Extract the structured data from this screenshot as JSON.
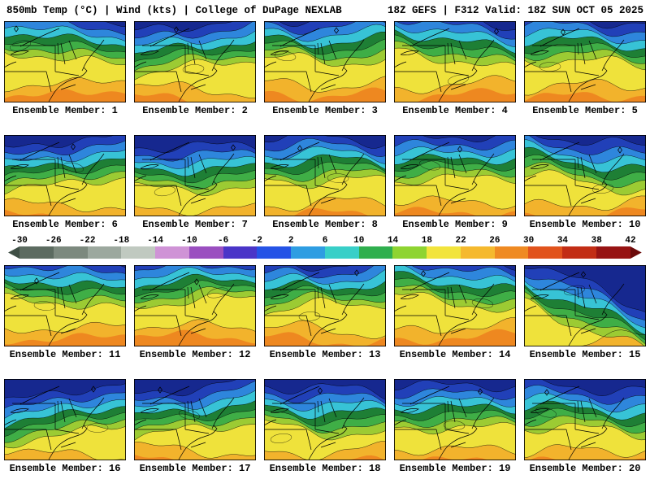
{
  "header": {
    "left": "850mb Temp (°C) | Wind (kts) | College of DuPage NEXLAB",
    "right": "18Z GEFS | F312 Valid: 18Z SUN OCT 05 2025"
  },
  "panels": [
    {
      "label": "Ensemble Member: 1"
    },
    {
      "label": "Ensemble Member: 2"
    },
    {
      "label": "Ensemble Member: 3"
    },
    {
      "label": "Ensemble Member: 4"
    },
    {
      "label": "Ensemble Member: 5"
    },
    {
      "label": "Ensemble Member: 6"
    },
    {
      "label": "Ensemble Member: 7"
    },
    {
      "label": "Ensemble Member: 8"
    },
    {
      "label": "Ensemble Member: 9"
    },
    {
      "label": "Ensemble Member: 10"
    },
    {
      "label": "Ensemble Member: 11"
    },
    {
      "label": "Ensemble Member: 12"
    },
    {
      "label": "Ensemble Member: 13"
    },
    {
      "label": "Ensemble Member: 14"
    },
    {
      "label": "Ensemble Member: 15"
    },
    {
      "label": "Ensemble Member: 16"
    },
    {
      "label": "Ensemble Member: 17"
    },
    {
      "label": "Ensemble Member: 18"
    },
    {
      "label": "Ensemble Member: 19"
    },
    {
      "label": "Ensemble Member: 20"
    }
  ],
  "colorbar": {
    "ticks": [
      "-30",
      "-26",
      "-22",
      "-18",
      "-14",
      "-10",
      "-6",
      "-2",
      "2",
      "6",
      "10",
      "14",
      "18",
      "22",
      "26",
      "30",
      "34",
      "38",
      "42"
    ],
    "colors": [
      "#3f4f45",
      "#5c6b60",
      "#7c897e",
      "#9ca89e",
      "#c0c9c0",
      "#cf93d6",
      "#9a4fc0",
      "#4a35c8",
      "#2553e6",
      "#2e9de2",
      "#38cfc8",
      "#2faf4e",
      "#8ed431",
      "#f2e43c",
      "#f5b92e",
      "#ef8a22",
      "#e1531c",
      "#c22d15",
      "#971313",
      "#6b0a0a"
    ]
  },
  "map_colors": {
    "yellow": "#efe23b",
    "gold": "#f2b32c",
    "orange": "#ee8820",
    "yellow_green": "#9ccb33",
    "green": "#3fae46",
    "dark_green": "#1e7f35",
    "cyan": "#37c3d6",
    "blue": "#2e86dc",
    "deep_blue": "#2140b8",
    "deepest_blue": "#16288f"
  }
}
